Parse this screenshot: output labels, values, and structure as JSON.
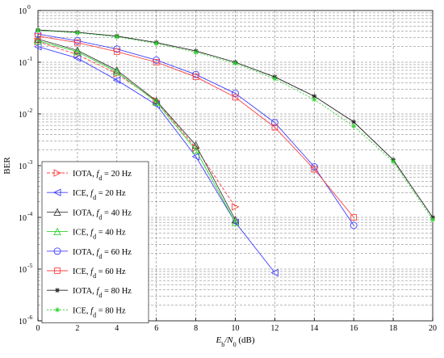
{
  "chart_data": {
    "type": "line",
    "xlabel": "E_b/N_0 (dB)",
    "xlabel_parts": {
      "main": "E",
      "sub1": "b",
      "slash": "/N",
      "sub2": "0",
      "unit": " (dB)"
    },
    "ylabel": "BER",
    "xlim": [
      0,
      20
    ],
    "ylim": [
      1e-06,
      1
    ],
    "yscale": "log",
    "grid": true,
    "legend_placement": "bottom-left",
    "x_ticks": [
      0,
      2,
      4,
      6,
      8,
      10,
      12,
      14,
      16,
      18,
      20
    ],
    "x_tick_labels": [
      "0",
      "2",
      "4",
      "6",
      "8",
      "10",
      "12",
      "14",
      "16",
      "18",
      "20"
    ],
    "y_tick_exponents": [
      0,
      -1,
      -2,
      -3,
      -4,
      -5,
      -6
    ],
    "y_tick_labels": [
      {
        "base": "10",
        "exp": "0"
      },
      {
        "base": "10",
        "exp": "-1"
      },
      {
        "base": "10",
        "exp": "-2"
      },
      {
        "base": "10",
        "exp": "-3"
      },
      {
        "base": "10",
        "exp": "-4"
      },
      {
        "base": "10",
        "exp": "-5"
      },
      {
        "base": "10",
        "exp": "-6"
      }
    ],
    "series": [
      {
        "name": "IOTA, f_d = 20 Hz",
        "prefix": "IOTA, ",
        "fd": "f",
        "sub": "d",
        "suffix": " = 20 Hz",
        "color": "#ff4040",
        "marker": "tri-right",
        "dash": "4,2",
        "x": [
          0,
          2,
          4,
          6,
          8,
          10
        ],
        "y": [
          0.25,
          0.14,
          0.06,
          0.018,
          0.0022,
          0.00016
        ]
      },
      {
        "name": "ICE, f_d = 20 Hz",
        "prefix": "ICE, ",
        "fd": "f",
        "sub": "d",
        "suffix": " = 20 Hz",
        "color": "#4040ff",
        "marker": "tri-left",
        "dash": "",
        "x": [
          0,
          2,
          4,
          6,
          8,
          10,
          12
        ],
        "y": [
          0.2,
          0.12,
          0.045,
          0.015,
          0.0015,
          8e-05,
          8.5e-06
        ]
      },
      {
        "name": "IOTA, f_d = 40 Hz",
        "prefix": "IOTA, ",
        "fd": "f",
        "sub": "d",
        "suffix": " = 40 Hz",
        "color": "#404040",
        "marker": "tri-up",
        "dash": "",
        "x": [
          0,
          2,
          4,
          6,
          8,
          10
        ],
        "y": [
          0.28,
          0.17,
          0.07,
          0.018,
          0.0025,
          9e-05
        ]
      },
      {
        "name": "ICE, f_d = 40 Hz",
        "prefix": "ICE, ",
        "fd": "f",
        "sub": "d",
        "suffix": " = 40 Hz",
        "color": "#30d030",
        "marker": "tri-up",
        "dash": "",
        "x": [
          0,
          2,
          4,
          6,
          8,
          10
        ],
        "y": [
          0.26,
          0.16,
          0.065,
          0.017,
          0.002,
          8e-05
        ]
      },
      {
        "name": "IOTA, f_d = 60 Hz",
        "prefix": "IOTA, ",
        "fd": "f",
        "sub": "d",
        "suffix": " = 60 Hz",
        "color": "#4040ff",
        "marker": "circle",
        "dash": "",
        "x": [
          0,
          2,
          4,
          6,
          8,
          10,
          12,
          14,
          16
        ],
        "y": [
          0.35,
          0.26,
          0.18,
          0.11,
          0.058,
          0.025,
          0.0068,
          0.00095,
          7e-05
        ]
      },
      {
        "name": "ICE, f_d = 60 Hz",
        "prefix": "ICE, ",
        "fd": "f",
        "sub": "d",
        "suffix": " = 60 Hz",
        "color": "#ff4040",
        "marker": "square",
        "dash": "",
        "x": [
          0,
          2,
          4,
          6,
          8,
          10,
          12,
          14,
          16
        ],
        "y": [
          0.32,
          0.24,
          0.16,
          0.1,
          0.052,
          0.021,
          0.0055,
          0.00085,
          0.0001
        ]
      },
      {
        "name": "IOTA, f_d = 80 Hz",
        "prefix": "IOTA, ",
        "fd": "f",
        "sub": "d",
        "suffix": " = 80 Hz",
        "color": "#202020",
        "marker": "star",
        "dash": "",
        "x": [
          0,
          2,
          4,
          6,
          8,
          10,
          12,
          14,
          16,
          18,
          20
        ],
        "y": [
          0.42,
          0.38,
          0.32,
          0.24,
          0.165,
          0.1,
          0.052,
          0.022,
          0.007,
          0.0013,
          0.0001
        ]
      },
      {
        "name": "ICE, f_d = 80 Hz",
        "prefix": "ICE, ",
        "fd": "f",
        "sub": "d",
        "suffix": " = 80 Hz",
        "color": "#30d030",
        "marker": "star",
        "dash": "2,2",
        "x": [
          0,
          2,
          4,
          6,
          8,
          10,
          12,
          14,
          16,
          18,
          20
        ],
        "y": [
          0.41,
          0.37,
          0.31,
          0.23,
          0.155,
          0.095,
          0.048,
          0.019,
          0.0058,
          0.0012,
          9e-05
        ]
      }
    ]
  }
}
